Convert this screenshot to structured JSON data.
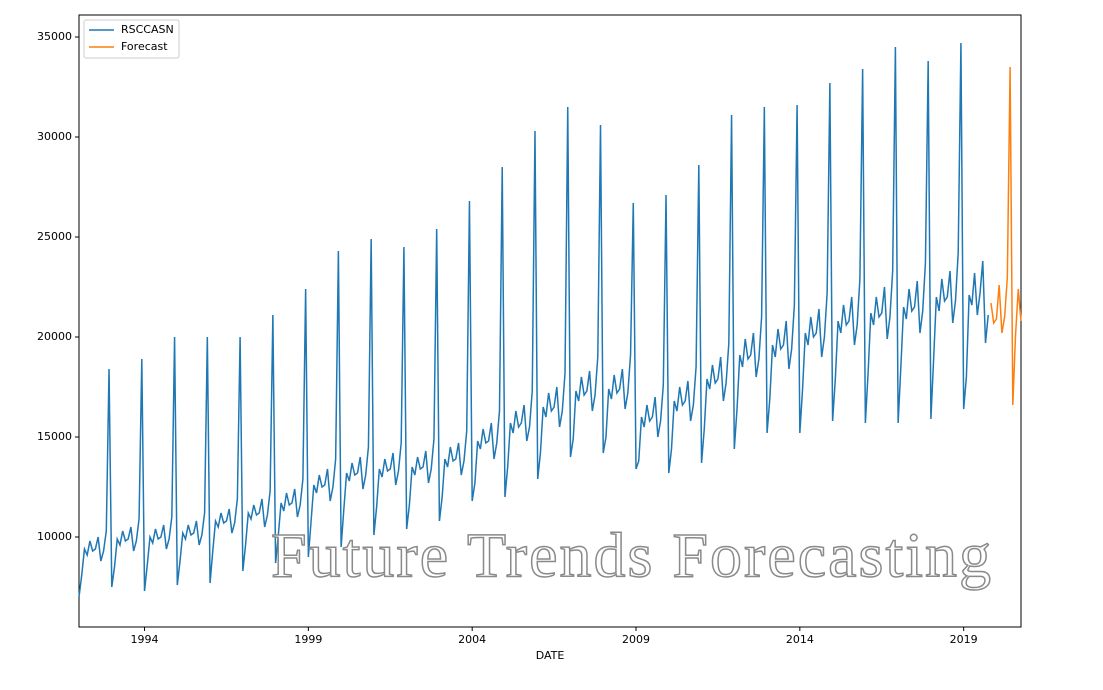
{
  "chart_data": {
    "type": "line",
    "xlabel": "DATE",
    "watermark": "Future Trends Forecasting",
    "legend": "upper left",
    "xlim": [
      "1992-01",
      "2020-10"
    ],
    "ylim": [
      5500,
      36100
    ],
    "xticks": [
      {
        "value": "1994-01",
        "label": "1994"
      },
      {
        "value": "1999-01",
        "label": "1999"
      },
      {
        "value": "2004-01",
        "label": "2004"
      },
      {
        "value": "2009-01",
        "label": "2009"
      },
      {
        "value": "2014-01",
        "label": "2014"
      },
      {
        "value": "2019-01",
        "label": "2019"
      }
    ],
    "yticks": [
      10000,
      15000,
      20000,
      25000,
      30000,
      35000
    ],
    "series": [
      {
        "name": "RSCCASN",
        "color": "#1f77b4",
        "x": [
          "1992-01",
          "1992-02",
          "1992-03",
          "1992-04",
          "1992-05",
          "1992-06",
          "1992-07",
          "1992-08",
          "1992-09",
          "1992-10",
          "1992-11",
          "1992-12",
          "1993-01",
          "1993-02",
          "1993-03",
          "1993-04",
          "1993-05",
          "1993-06",
          "1993-07",
          "1993-08",
          "1993-09",
          "1993-10",
          "1993-11",
          "1993-12",
          "1994-01",
          "1994-02",
          "1994-03",
          "1994-04",
          "1994-05",
          "1994-06",
          "1994-07",
          "1994-08",
          "1994-09",
          "1994-10",
          "1994-11",
          "1994-12",
          "1995-01",
          "1995-02",
          "1995-03",
          "1995-04",
          "1995-05",
          "1995-06",
          "1995-07",
          "1995-08",
          "1995-09",
          "1995-10",
          "1995-11",
          "1995-12",
          "1996-01",
          "1996-02",
          "1996-03",
          "1996-04",
          "1996-05",
          "1996-06",
          "1996-07",
          "1996-08",
          "1996-09",
          "1996-10",
          "1996-11",
          "1996-12",
          "1997-01",
          "1997-02",
          "1997-03",
          "1997-04",
          "1997-05",
          "1997-06",
          "1997-07",
          "1997-08",
          "1997-09",
          "1997-10",
          "1997-11",
          "1997-12",
          "1998-01",
          "1998-02",
          "1998-03",
          "1998-04",
          "1998-05",
          "1998-06",
          "1998-07",
          "1998-08",
          "1998-09",
          "1998-10",
          "1998-11",
          "1998-12",
          "1999-01",
          "1999-02",
          "1999-03",
          "1999-04",
          "1999-05",
          "1999-06",
          "1999-07",
          "1999-08",
          "1999-09",
          "1999-10",
          "1999-11",
          "1999-12",
          "2000-01",
          "2000-02",
          "2000-03",
          "2000-04",
          "2000-05",
          "2000-06",
          "2000-07",
          "2000-08",
          "2000-09",
          "2000-10",
          "2000-11",
          "2000-12",
          "2001-01",
          "2001-02",
          "2001-03",
          "2001-04",
          "2001-05",
          "2001-06",
          "2001-07",
          "2001-08",
          "2001-09",
          "2001-10",
          "2001-11",
          "2001-12",
          "2002-01",
          "2002-02",
          "2002-03",
          "2002-04",
          "2002-05",
          "2002-06",
          "2002-07",
          "2002-08",
          "2002-09",
          "2002-10",
          "2002-11",
          "2002-12",
          "2003-01",
          "2003-02",
          "2003-03",
          "2003-04",
          "2003-05",
          "2003-06",
          "2003-07",
          "2003-08",
          "2003-09",
          "2003-10",
          "2003-11",
          "2003-12",
          "2004-01",
          "2004-02",
          "2004-03",
          "2004-04",
          "2004-05",
          "2004-06",
          "2004-07",
          "2004-08",
          "2004-09",
          "2004-10",
          "2004-11",
          "2004-12",
          "2005-01",
          "2005-02",
          "2005-03",
          "2005-04",
          "2005-05",
          "2005-06",
          "2005-07",
          "2005-08",
          "2005-09",
          "2005-10",
          "2005-11",
          "2005-12",
          "2006-01",
          "2006-02",
          "2006-03",
          "2006-04",
          "2006-05",
          "2006-06",
          "2006-07",
          "2006-08",
          "2006-09",
          "2006-10",
          "2006-11",
          "2006-12",
          "2007-01",
          "2007-02",
          "2007-03",
          "2007-04",
          "2007-05",
          "2007-06",
          "2007-07",
          "2007-08",
          "2007-09",
          "2007-10",
          "2007-11",
          "2007-12",
          "2008-01",
          "2008-02",
          "2008-03",
          "2008-04",
          "2008-05",
          "2008-06",
          "2008-07",
          "2008-08",
          "2008-09",
          "2008-10",
          "2008-11",
          "2008-12",
          "2009-01",
          "2009-02",
          "2009-03",
          "2009-04",
          "2009-05",
          "2009-06",
          "2009-07",
          "2009-08",
          "2009-09",
          "2009-10",
          "2009-11",
          "2009-12",
          "2010-01",
          "2010-02",
          "2010-03",
          "2010-04",
          "2010-05",
          "2010-06",
          "2010-07",
          "2010-08",
          "2010-09",
          "2010-10",
          "2010-11",
          "2010-12",
          "2011-01",
          "2011-02",
          "2011-03",
          "2011-04",
          "2011-05",
          "2011-06",
          "2011-07",
          "2011-08",
          "2011-09",
          "2011-10",
          "2011-11",
          "2011-12",
          "2012-01",
          "2012-02",
          "2012-03",
          "2012-04",
          "2012-05",
          "2012-06",
          "2012-07",
          "2012-08",
          "2012-09",
          "2012-10",
          "2012-11",
          "2012-12",
          "2013-01",
          "2013-02",
          "2013-03",
          "2013-04",
          "2013-05",
          "2013-06",
          "2013-07",
          "2013-08",
          "2013-09",
          "2013-10",
          "2013-11",
          "2013-12",
          "2014-01",
          "2014-02",
          "2014-03",
          "2014-04",
          "2014-05",
          "2014-06",
          "2014-07",
          "2014-08",
          "2014-09",
          "2014-10",
          "2014-11",
          "2014-12",
          "2015-01",
          "2015-02",
          "2015-03",
          "2015-04",
          "2015-05",
          "2015-06",
          "2015-07",
          "2015-08",
          "2015-09",
          "2015-10",
          "2015-11",
          "2015-12",
          "2016-01",
          "2016-02",
          "2016-03",
          "2016-04",
          "2016-05",
          "2016-06",
          "2016-07",
          "2016-08",
          "2016-09",
          "2016-10",
          "2016-11",
          "2016-12",
          "2017-01",
          "2017-02",
          "2017-03",
          "2017-04",
          "2017-05",
          "2017-06",
          "2017-07",
          "2017-08",
          "2017-09",
          "2017-10",
          "2017-11",
          "2017-12",
          "2018-01",
          "2018-02",
          "2018-03",
          "2018-04",
          "2018-05",
          "2018-06",
          "2018-07",
          "2018-08",
          "2018-09",
          "2018-10",
          "2018-11",
          "2018-12",
          "2019-01",
          "2019-02",
          "2019-03",
          "2019-04",
          "2019-05",
          "2019-06",
          "2019-07",
          "2019-08",
          "2019-09",
          "2019-10"
        ],
        "values": [
          7000,
          8100,
          9400,
          9100,
          9800,
          9300,
          9400,
          10000,
          8800,
          9300,
          10300,
          18400,
          7500,
          8500,
          9900,
          9600,
          10300,
          9800,
          9900,
          10500,
          9300,
          9800,
          10900,
          18900,
          7300,
          8600,
          10000,
          9700,
          10400,
          9900,
          10000,
          10600,
          9400,
          9900,
          11000,
          20000,
          7600,
          8800,
          10200,
          9900,
          10600,
          10100,
          10200,
          10800,
          9600,
          10100,
          11200,
          20000,
          7700,
          9300,
          10800,
          10500,
          11200,
          10700,
          10800,
          11400,
          10200,
          10700,
          11900,
          20000,
          8300,
          9600,
          11200,
          10900,
          11600,
          11100,
          11200,
          11900,
          10500,
          11100,
          12300,
          21100,
          8700,
          10100,
          11700,
          11300,
          12200,
          11600,
          11700,
          12400,
          11000,
          11600,
          12900,
          22400,
          9000,
          10800,
          12600,
          12200,
          13100,
          12500,
          12600,
          13400,
          11800,
          12500,
          13900,
          24300,
          9500,
          11400,
          13200,
          12800,
          13700,
          13100,
          13200,
          14000,
          12400,
          13100,
          14500,
          24900,
          10100,
          11500,
          13400,
          13000,
          13900,
          13300,
          13400,
          14200,
          12600,
          13300,
          14700,
          24500,
          10400,
          11600,
          13500,
          13100,
          14000,
          13400,
          13500,
          14300,
          12700,
          13400,
          14900,
          25400,
          10800,
          12000,
          13900,
          13500,
          14500,
          13800,
          13900,
          14700,
          13100,
          13800,
          15300,
          26800,
          11800,
          12700,
          14800,
          14400,
          15400,
          14700,
          14800,
          15700,
          13900,
          14700,
          16300,
          28500,
          12000,
          13500,
          15700,
          15200,
          16300,
          15500,
          15700,
          16600,
          14800,
          15500,
          17300,
          30300,
          12900,
          14200,
          16500,
          16000,
          17200,
          16300,
          16500,
          17500,
          15500,
          16300,
          18200,
          31500,
          14000,
          14900,
          17300,
          16800,
          18000,
          17100,
          17300,
          18300,
          16300,
          17100,
          19000,
          30600,
          14200,
          15000,
          17400,
          16900,
          18100,
          17200,
          17400,
          18400,
          16400,
          17200,
          19100,
          26700,
          13400,
          13800,
          16000,
          15500,
          16600,
          15800,
          16000,
          17000,
          15000,
          15800,
          17600,
          27100,
          13200,
          14400,
          16800,
          16300,
          17500,
          16600,
          16800,
          17800,
          15800,
          16600,
          18500,
          28600,
          13700,
          15400,
          17900,
          17400,
          18600,
          17700,
          17900,
          19000,
          16800,
          17700,
          19700,
          31100,
          14400,
          16400,
          19100,
          18500,
          19900,
          18900,
          19100,
          20200,
          18000,
          18900,
          21000,
          31500,
          15200,
          16900,
          19600,
          19000,
          20400,
          19400,
          19600,
          20800,
          18400,
          19400,
          21600,
          31600,
          15200,
          17400,
          20200,
          19600,
          21000,
          20000,
          20200,
          21400,
          19000,
          20000,
          22200,
          32700,
          15800,
          17900,
          20800,
          20200,
          21600,
          20600,
          20800,
          22000,
          19600,
          20600,
          22900,
          33400,
          15700,
          18200,
          21200,
          20600,
          22000,
          21000,
          21200,
          22500,
          19900,
          21000,
          23300,
          34500,
          15700,
          18500,
          21500,
          20900,
          22400,
          21300,
          21500,
          22800,
          20200,
          21300,
          23700,
          33800,
          15900,
          18900,
          22000,
          21300,
          22900,
          21800,
          22000,
          23300,
          20700,
          21800,
          24200,
          34700,
          16400,
          18000,
          22100,
          21600,
          23200,
          21100,
          22200,
          23800,
          19700,
          21100
        ]
      },
      {
        "name": "Forecast",
        "color": "#ff7f0e",
        "x": [
          "2019-11",
          "2019-12",
          "2020-01",
          "2020-02",
          "2020-03",
          "2020-04",
          "2020-05",
          "2020-06",
          "2020-07",
          "2020-08",
          "2020-09",
          "2020-10"
        ],
        "values": [
          21700,
          20700,
          20900,
          22600,
          20200,
          21000,
          23000,
          33500,
          16600,
          20100,
          22400,
          20800
        ]
      }
    ]
  }
}
